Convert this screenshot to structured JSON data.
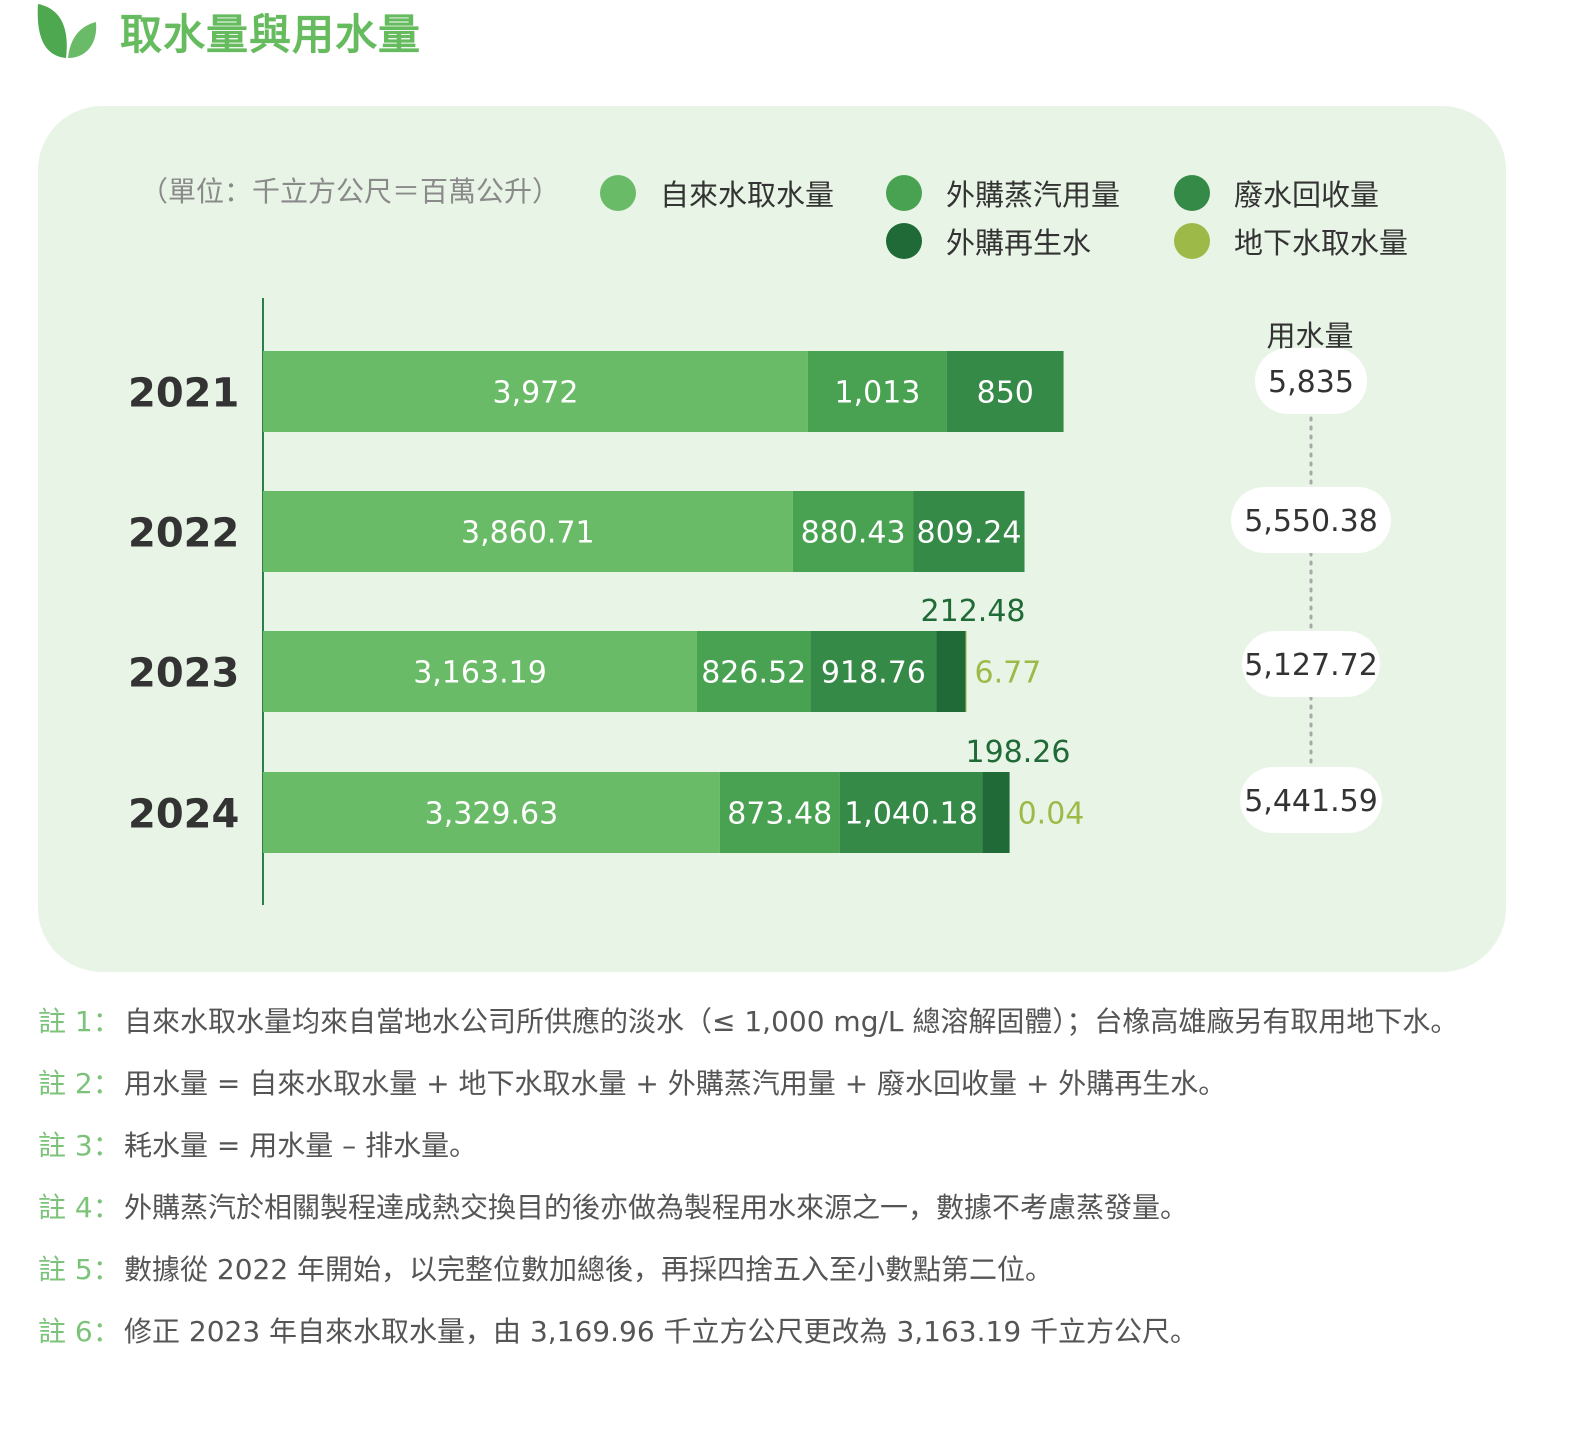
{
  "header": {
    "title": "取水量與用水量",
    "icon": "leaf-icon"
  },
  "unit": "（單位：千立方公尺＝百萬公升）",
  "colors": {
    "title": "#66bb5f",
    "panel": "#e8f4e6",
    "axis": "#2e7d4a",
    "note_label": "#7cc37a"
  },
  "legend": [
    {
      "label": "自來水取水量",
      "color": "#69bb67"
    },
    {
      "label": "外購蒸汽用量",
      "color": "#49a252"
    },
    {
      "label": "廢水回收量",
      "color": "#368a47"
    },
    {
      "label": "外購再生水",
      "color": "#1f6a36"
    },
    {
      "label": "地下水取水量",
      "color": "#9dba49"
    }
  ],
  "water_use_heading": "用水量",
  "chart_data": {
    "type": "bar",
    "orientation": "horizontal",
    "stacked": true,
    "categories": [
      "2021",
      "2022",
      "2023",
      "2024"
    ],
    "series": [
      {
        "name": "自來水取水量",
        "color": "#69bb67",
        "values": [
          3972,
          3860.71,
          3163.19,
          3329.63
        ],
        "labels": [
          "3,972",
          "3,860.71",
          "3,163.19",
          "3,329.63"
        ]
      },
      {
        "name": "外購蒸汽用量",
        "color": "#49a252",
        "values": [
          1013,
          880.43,
          826.52,
          873.48
        ],
        "labels": [
          "1,013",
          "880.43",
          "826.52",
          "873.48"
        ]
      },
      {
        "name": "廢水回收量",
        "color": "#368a47",
        "values": [
          850,
          809.24,
          918.76,
          1040.18
        ],
        "labels": [
          "850",
          "809.24",
          "918.76",
          "1,040.18"
        ]
      },
      {
        "name": "外購再生水",
        "color": "#1f6a36",
        "values": [
          0,
          0,
          212.48,
          198.26
        ],
        "labels": [
          "",
          "",
          "212.48",
          "198.26"
        ]
      },
      {
        "name": "地下水取水量",
        "color": "#9dba49",
        "values": [
          0,
          0,
          6.77,
          0.04
        ],
        "labels": [
          "",
          "",
          "6.77",
          "0.04"
        ]
      }
    ],
    "totals": [
      5835,
      5550.38,
      5127.72,
      5441.59
    ],
    "total_labels": [
      "5,835",
      "5,550.38",
      "5,127.72",
      "5,441.59"
    ]
  },
  "notes": [
    {
      "label": "註 1：",
      "text": "自來水取水量均來自當地水公司所供應的淡水（≤ 1,000 mg/L 總溶解固體）；台橡高雄廠另有取用地下水。"
    },
    {
      "label": "註 2：",
      "text": "用水量 = 自來水取水量 + 地下水取水量 + 外購蒸汽用量 + 廢水回收量 + 外購再生水。"
    },
    {
      "label": "註 3：",
      "text": "耗水量 = 用水量 – 排水量。"
    },
    {
      "label": "註 4：",
      "text": "外購蒸汽於相關製程達成熱交換目的後亦做為製程用水來源之一，數據不考慮蒸發量。"
    },
    {
      "label": "註 5：",
      "text": "數據從 2022 年開始，以完整位數加總後，再採四捨五入至小數點第二位。"
    },
    {
      "label": "註 6：",
      "text": "修正 2023 年自來水取水量，由 3,169.96 千立方公尺更改為 3,163.19 千立方公尺。"
    }
  ]
}
